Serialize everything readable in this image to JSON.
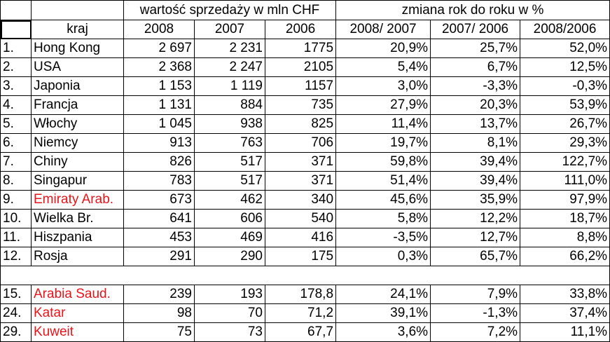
{
  "header": {
    "group_sales": "wartość sprzedaży w mln CHF",
    "group_change": "zmiana rok do roku w %",
    "col_country": "kraj",
    "col_2008": "2008",
    "col_2007": "2007",
    "col_2006": "2006",
    "col_0807": "2008/ 2007",
    "col_0706": "2007/ 2006",
    "col_0806": "2008/2006"
  },
  "rows": [
    {
      "rank": "1.",
      "country": "Hong Kong",
      "v2008": "2 697",
      "v2007": "2 231",
      "v2006": "1775",
      "c0807": "20,9%",
      "c0706": "25,7%",
      "c0806": "52,0%",
      "highlight": false
    },
    {
      "rank": "2.",
      "country": "USA",
      "v2008": "2 368",
      "v2007": "2 247",
      "v2006": "2105",
      "c0807": "5,4%",
      "c0706": "6,7%",
      "c0806": "12,5%",
      "highlight": false
    },
    {
      "rank": "3.",
      "country": "Japonia",
      "v2008": "1 153",
      "v2007": "1 119",
      "v2006": "1157",
      "c0807": "3,0%",
      "c0706": "-3,3%",
      "c0806": "-0,3%",
      "highlight": false
    },
    {
      "rank": "4.",
      "country": "Francja",
      "v2008": "1 131",
      "v2007": "884",
      "v2006": "735",
      "c0807": "27,9%",
      "c0706": "20,3%",
      "c0806": "53,9%",
      "highlight": false
    },
    {
      "rank": "5.",
      "country": "Włochy",
      "v2008": "1 045",
      "v2007": "938",
      "v2006": "825",
      "c0807": "11,4%",
      "c0706": "13,7%",
      "c0806": "26,7%",
      "highlight": false
    },
    {
      "rank": "6.",
      "country": "Niemcy",
      "v2008": "913",
      "v2007": "763",
      "v2006": "706",
      "c0807": "19,7%",
      "c0706": "8,1%",
      "c0806": "29,3%",
      "highlight": false
    },
    {
      "rank": "7.",
      "country": "Chiny",
      "v2008": "826",
      "v2007": "517",
      "v2006": "371",
      "c0807": "59,8%",
      "c0706": "39,4%",
      "c0806": "122,7%",
      "highlight": false
    },
    {
      "rank": "8.",
      "country": "Singapur",
      "v2008": "783",
      "v2007": "517",
      "v2006": "371",
      "c0807": "51,4%",
      "c0706": "39,4%",
      "c0806": "111,0%",
      "highlight": false
    },
    {
      "rank": "9.",
      "country": "Emiraty Arab.",
      "v2008": "673",
      "v2007": "462",
      "v2006": "340",
      "c0807": "45,6%",
      "c0706": "35,9%",
      "c0806": "97,9%",
      "highlight": true
    },
    {
      "rank": "10.",
      "country": "Wielka Br.",
      "v2008": "641",
      "v2007": "606",
      "v2006": "540",
      "c0807": "5,8%",
      "c0706": "12,2%",
      "c0806": "18,7%",
      "highlight": false
    },
    {
      "rank": "11.",
      "country": "Hiszpania",
      "v2008": "453",
      "v2007": "469",
      "v2006": "416",
      "c0807": "-3,5%",
      "c0706": "12,7%",
      "c0806": "8,8%",
      "highlight": false
    },
    {
      "rank": "12.",
      "country": "Rosja",
      "v2008": "291",
      "v2007": "290",
      "v2006": "175",
      "c0807": "0,3%",
      "c0706": "65,7%",
      "c0806": "66,2%",
      "highlight": false
    }
  ],
  "extra_rows": [
    {
      "rank": "15.",
      "country": "Arabia Saud.",
      "v2008": "239",
      "v2007": "193",
      "v2006": "178,8",
      "c0807": "24,1%",
      "c0706": "7,9%",
      "c0806": "33,8%",
      "highlight": true
    },
    {
      "rank": "24.",
      "country": "Katar",
      "v2008": "98",
      "v2007": "70",
      "v2006": "71,2",
      "c0807": "39,1%",
      "c0706": "-1,3%",
      "c0806": "37,4%",
      "highlight": true
    },
    {
      "rank": "29.",
      "country": "Kuweit",
      "v2008": "75",
      "v2007": "73",
      "v2006": "67,7",
      "c0807": "3,6%",
      "c0706": "7,2%",
      "c0806": "11,1%",
      "highlight": true
    }
  ],
  "colors": {
    "highlight_text": "#e8141a",
    "grid": "#000000"
  }
}
